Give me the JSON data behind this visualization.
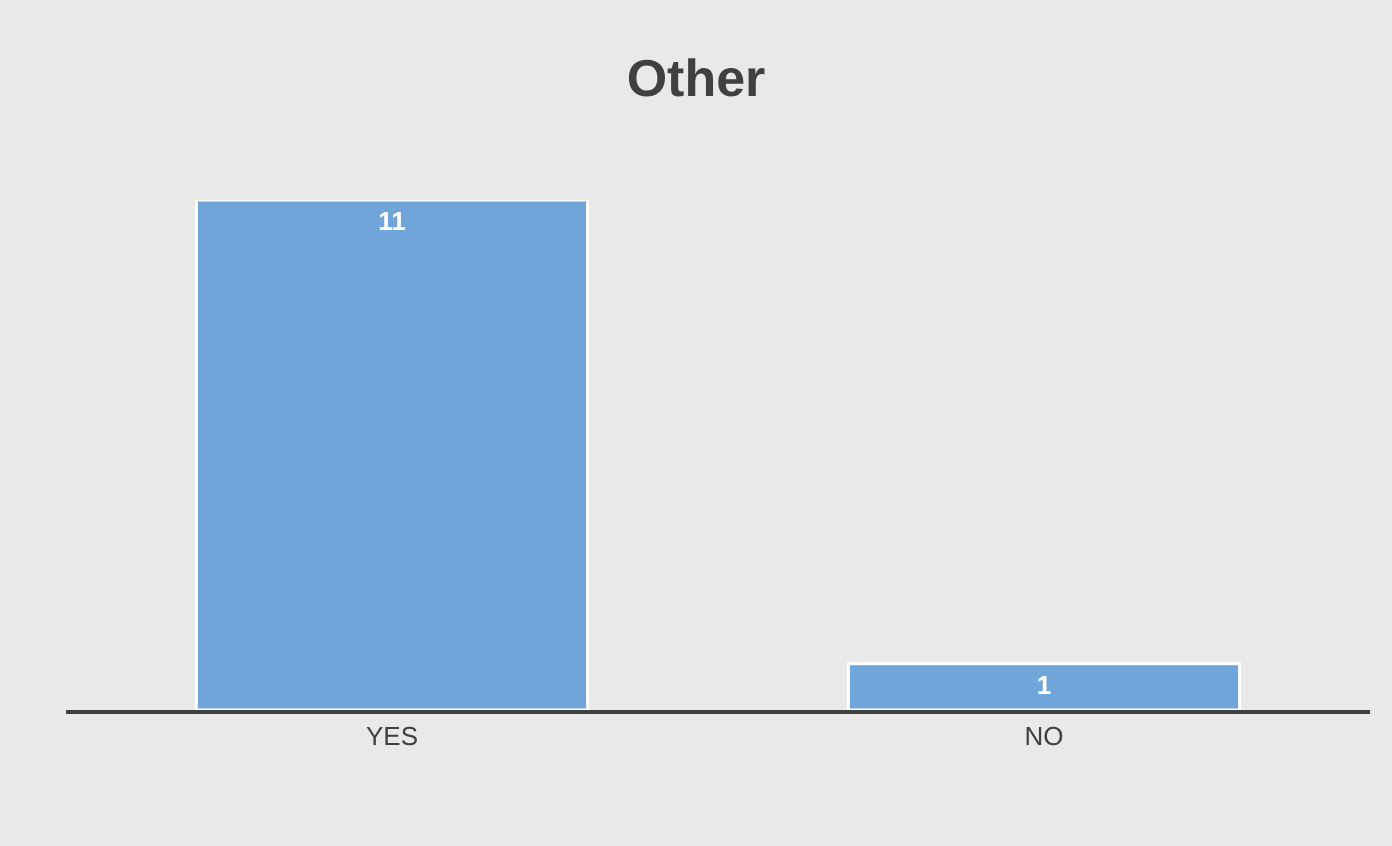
{
  "chart_data": {
    "type": "bar",
    "title": "Other",
    "categories": [
      "YES",
      "NO"
    ],
    "values": [
      11,
      1
    ],
    "color": "#6fa5d8",
    "data_labels": true
  }
}
